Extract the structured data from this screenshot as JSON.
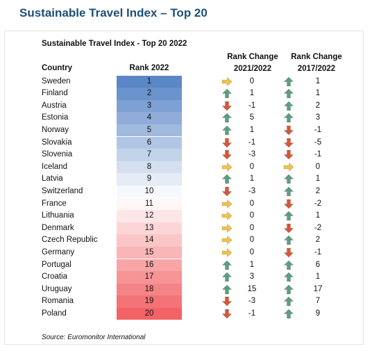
{
  "page_title": "Sustainable Travel Index – Top 20",
  "source": "Source: Euromonitor International",
  "chart_data": {
    "type": "table",
    "title": "Sustainable Travel Index - Top 20 2022",
    "columns": {
      "country": "Country",
      "rank": "Rank 2022",
      "change1_line1": "Rank Change",
      "change1_line2": "2021/2022",
      "change2_line1": "Rank Change",
      "change2_line2": "2017/2022"
    },
    "rows": [
      {
        "country": "Sweden",
        "rank": "1",
        "change_2021_2022": "0",
        "change_2017_2022": "1"
      },
      {
        "country": "Finland",
        "rank": "2",
        "change_2021_2022": "1",
        "change_2017_2022": "1"
      },
      {
        "country": "Austria",
        "rank": "3",
        "change_2021_2022": "-1",
        "change_2017_2022": "2"
      },
      {
        "country": "Estonia",
        "rank": "4",
        "change_2021_2022": "5",
        "change_2017_2022": "3"
      },
      {
        "country": "Norway",
        "rank": "5",
        "change_2021_2022": "1",
        "change_2017_2022": "-1"
      },
      {
        "country": "Slovakia",
        "rank": "6",
        "change_2021_2022": "-1",
        "change_2017_2022": "-5"
      },
      {
        "country": "Slovenia",
        "rank": "7",
        "change_2021_2022": "-3",
        "change_2017_2022": "-1"
      },
      {
        "country": "Iceland",
        "rank": "8",
        "change_2021_2022": "0",
        "change_2017_2022": "0"
      },
      {
        "country": "Latvia",
        "rank": "9",
        "change_2021_2022": "1",
        "change_2017_2022": "1"
      },
      {
        "country": "Switzerland",
        "rank": "10",
        "change_2021_2022": "-3",
        "change_2017_2022": "2"
      },
      {
        "country": "France",
        "rank": "11",
        "change_2021_2022": "0",
        "change_2017_2022": "-2"
      },
      {
        "country": "Lithuania",
        "rank": "12",
        "change_2021_2022": "0",
        "change_2017_2022": "1"
      },
      {
        "country": "Denmark",
        "rank": "13",
        "change_2021_2022": "0",
        "change_2017_2022": "-2"
      },
      {
        "country": "Czech Republic",
        "rank": "14",
        "change_2021_2022": "0",
        "change_2017_2022": "2"
      },
      {
        "country": "Germany",
        "rank": "15",
        "change_2021_2022": "0",
        "change_2017_2022": "-1"
      },
      {
        "country": "Portugal",
        "rank": "16",
        "change_2021_2022": "1",
        "change_2017_2022": "6"
      },
      {
        "country": "Croatia",
        "rank": "17",
        "change_2021_2022": "3",
        "change_2017_2022": "1"
      },
      {
        "country": "Uruguay",
        "rank": "18",
        "change_2021_2022": "15",
        "change_2017_2022": "17"
      },
      {
        "country": "Romania",
        "rank": "19",
        "change_2021_2022": "-3",
        "change_2017_2022": "7"
      },
      {
        "country": "Poland",
        "rank": "20",
        "change_2021_2022": "-1",
        "change_2017_2022": "9"
      }
    ],
    "colors": {
      "up_arrow": "#5e9c83",
      "down_arrow": "#d5573a",
      "flat_arrow": "#f0c24e",
      "rank_gradient_top": "#5b87c6",
      "rank_gradient_middle": "#ffffff",
      "rank_gradient_bottom": "#f26366",
      "title_color": "#1e4f7a"
    },
    "icons": {
      "up": "up-arrow-icon",
      "down": "down-arrow-icon",
      "flat": "right-arrow-icon"
    }
  }
}
